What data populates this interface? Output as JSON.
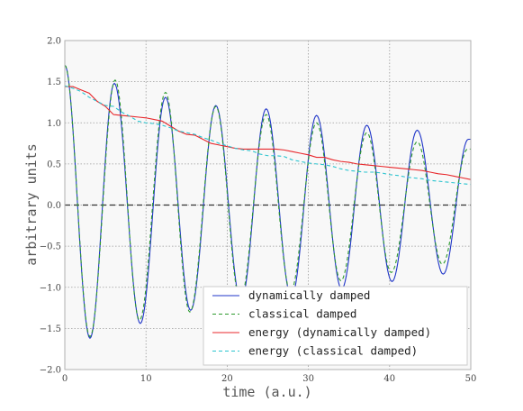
{
  "chart_data": {
    "type": "line",
    "xlabel": "time (a.u.)",
    "ylabel": "arbitrary units",
    "xlim": [
      0,
      50
    ],
    "ylim": [
      -2.0,
      2.0
    ],
    "xticks": [
      0,
      10,
      20,
      30,
      40,
      50
    ],
    "yticks": [
      -2.0,
      -1.5,
      -1.0,
      -0.5,
      0.0,
      0.5,
      1.0,
      1.5,
      2.0
    ],
    "xtick_labels": [
      "0",
      "10",
      "20",
      "30",
      "40",
      "50"
    ],
    "ytick_labels": [
      "−2.0",
      "−1.5",
      "−1.0",
      "−0.5",
      "0.0",
      "0.5",
      "1.0",
      "1.5",
      "2.0"
    ],
    "grid": true,
    "zero_line": 0.0,
    "legend_position": "lower-right",
    "background": "#f8f8f8",
    "series": [
      {
        "name": "dynamically damped",
        "color": "#1f35c8",
        "style": "solid",
        "x": [
          0,
          3.1,
          6.1,
          9.3,
          12.4,
          15.5,
          18.6,
          21.7,
          24.8,
          27.9,
          31.0,
          34.1,
          37.2,
          40.3,
          43.4,
          46.6,
          49.7
        ],
        "y": [
          1.7,
          -1.62,
          1.48,
          -1.44,
          1.31,
          -1.28,
          1.21,
          -1.17,
          1.17,
          -1.12,
          1.09,
          -1.02,
          0.97,
          -0.93,
          0.91,
          -0.84,
          0.8
        ]
      },
      {
        "name": "classical damped",
        "color": "#2e9a2e",
        "style": "dashed",
        "x": [
          0,
          3.1,
          6.2,
          9.2,
          12.4,
          15.4,
          18.6,
          21.6,
          24.8,
          27.8,
          31.0,
          34.0,
          37.2,
          40.2,
          43.4,
          46.5,
          49.6
        ],
        "y": [
          1.7,
          -1.6,
          1.52,
          -1.4,
          1.37,
          -1.3,
          1.2,
          -1.15,
          1.1,
          -1.05,
          1.0,
          -0.92,
          0.88,
          -0.82,
          0.77,
          -0.72,
          0.68
        ]
      },
      {
        "name": "energy (dynamically damped)",
        "color": "#e8272b",
        "style": "solid",
        "x": [
          0,
          1,
          2,
          3,
          4,
          5,
          6,
          7,
          8,
          9,
          10,
          11,
          12,
          13,
          14,
          15,
          16,
          17,
          18,
          19,
          20,
          21,
          22,
          23,
          24,
          25,
          26,
          27,
          28,
          29,
          30,
          31,
          32,
          33,
          34,
          35,
          36,
          37,
          38,
          39,
          40,
          41,
          42,
          43,
          44,
          45,
          46,
          47,
          48,
          49,
          50
        ],
        "y": [
          1.44,
          1.44,
          1.4,
          1.36,
          1.26,
          1.2,
          1.1,
          1.09,
          1.08,
          1.07,
          1.06,
          1.04,
          1.02,
          0.96,
          0.9,
          0.86,
          0.85,
          0.8,
          0.75,
          0.73,
          0.71,
          0.69,
          0.68,
          0.68,
          0.68,
          0.68,
          0.68,
          0.67,
          0.65,
          0.63,
          0.61,
          0.58,
          0.58,
          0.55,
          0.53,
          0.52,
          0.5,
          0.49,
          0.48,
          0.47,
          0.46,
          0.45,
          0.44,
          0.43,
          0.42,
          0.4,
          0.38,
          0.37,
          0.35,
          0.33,
          0.31
        ]
      },
      {
        "name": "energy (classical damped)",
        "color": "#2ac4cf",
        "style": "dashed",
        "x": [
          0,
          1,
          2,
          3,
          4,
          5,
          6,
          7,
          8,
          9,
          10,
          11,
          12,
          13,
          14,
          15,
          16,
          17,
          18,
          19,
          20,
          21,
          22,
          23,
          24,
          25,
          26,
          27,
          28,
          29,
          30,
          31,
          32,
          33,
          34,
          35,
          36,
          37,
          38,
          39,
          40,
          41,
          42,
          43,
          44,
          45,
          46,
          47,
          48,
          49,
          50
        ],
        "y": [
          1.45,
          1.42,
          1.38,
          1.31,
          1.26,
          1.21,
          1.2,
          1.13,
          1.08,
          1.02,
          1.0,
          0.99,
          0.97,
          0.94,
          0.9,
          0.88,
          0.86,
          0.82,
          0.79,
          0.75,
          0.72,
          0.69,
          0.67,
          0.66,
          0.62,
          0.6,
          0.6,
          0.59,
          0.55,
          0.53,
          0.51,
          0.5,
          0.49,
          0.47,
          0.44,
          0.42,
          0.41,
          0.4,
          0.4,
          0.39,
          0.37,
          0.36,
          0.34,
          0.33,
          0.32,
          0.3,
          0.29,
          0.28,
          0.27,
          0.26,
          0.25
        ]
      }
    ]
  }
}
